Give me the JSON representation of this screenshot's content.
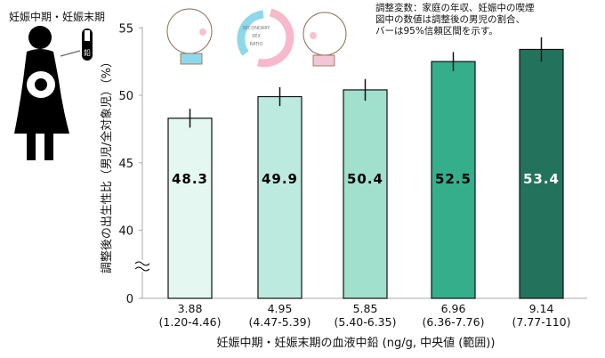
{
  "chart_data": {
    "type": "bar",
    "categories": [
      {
        "median": "3.88",
        "range": "(1.20-4.46)"
      },
      {
        "median": "4.95",
        "range": "(4.47-5.39)"
      },
      {
        "median": "5.85",
        "range": "(5.40-6.35)"
      },
      {
        "median": "6.96",
        "range": "(6.36-7.76)"
      },
      {
        "median": "9.14",
        "range": "(7.77-110)"
      }
    ],
    "values": [
      48.3,
      49.9,
      50.4,
      52.5,
      53.4
    ],
    "value_labels": [
      "48.3",
      "49.9",
      "50.4",
      "52.5",
      "53.4"
    ],
    "ci_lower": [
      47.6,
      49.2,
      49.6,
      51.8,
      52.5
    ],
    "ci_upper": [
      49.0,
      50.6,
      51.2,
      53.2,
      54.3
    ],
    "xlabel": "妊娠中期・妊娠末期の血液中鉛 (ng/g, 中央値 (範囲))",
    "ylabel": "調整後の出生性比（男児/全対象児）（%）",
    "yticks": [
      "0",
      "40",
      "45",
      "50",
      "55"
    ],
    "ylim": [
      40,
      55
    ],
    "axis_break": true,
    "grid": false,
    "colors": [
      "#e5f7f1",
      "#bdeadf",
      "#a0e0cc",
      "#35ae8c",
      "#23735c"
    ],
    "label_colors": [
      "#000000",
      "#000000",
      "#000000",
      "#000000",
      "#ffffff"
    ]
  },
  "note": "調整変数：家庭の年収、妊娠中の喫煙\n図中の数値は調整後の男児の割合、\nバーは95%信頼区間を示す。",
  "illustration": {
    "mother_label": "妊娠中期・妊娠末期",
    "tube_label": "鉛",
    "ring_text": "SECONDARY SEX RATIO"
  }
}
